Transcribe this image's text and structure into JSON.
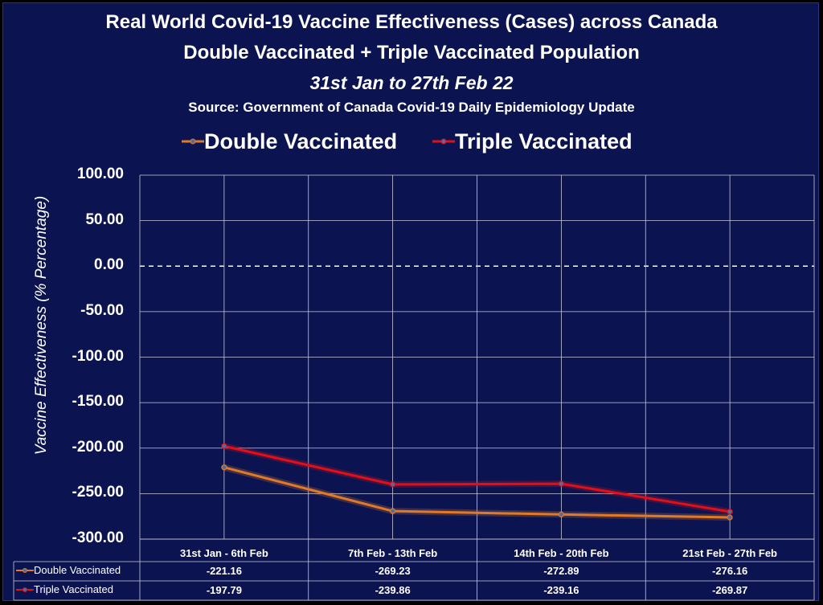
{
  "titles": {
    "line1": "Real World Covid-19 Vaccine Effectiveness (Cases) across Canada",
    "line2": "Double Vaccinated + Triple Vaccinated Population",
    "line3": "31st Jan to 27th Feb 22",
    "source": "Source: Government of Canada  Covid-19 Daily Epidemiology Update"
  },
  "colors": {
    "background": "#0b1450",
    "double": "#e07a2a",
    "triple": "#e0101a",
    "grid": "#c8c8d8"
  },
  "chart_data": {
    "type": "line",
    "ylabel": "Vaccine Effectiveness (% Percentage)",
    "xlabel": "",
    "ylim": [
      -300,
      100
    ],
    "yticks": [
      "100.00",
      "50.00",
      "0.00",
      "-50.00",
      "-100.00",
      "-150.00",
      "-200.00",
      "-250.00",
      "-300.00"
    ],
    "zero_line": "dashed",
    "grid": true,
    "legend_position": "top",
    "categories": [
      "31st Jan - 6th Feb",
      "7th Feb - 13th Feb",
      "14th Feb - 20th Feb",
      "21st Feb - 27th Feb"
    ],
    "series": [
      {
        "name": "Double Vaccinated",
        "color": "#e07a2a",
        "values": [
          -221.16,
          -269.23,
          -272.89,
          -276.16
        ],
        "labels": [
          "-221.16",
          "-269.23",
          "-272.89",
          "-276.16"
        ]
      },
      {
        "name": "Triple Vaccinated",
        "color": "#e0101a",
        "values": [
          -197.79,
          -239.86,
          -239.16,
          -269.87
        ],
        "labels": [
          "-197.79",
          "-239.86",
          "-239.16",
          "-269.87"
        ]
      }
    ]
  }
}
